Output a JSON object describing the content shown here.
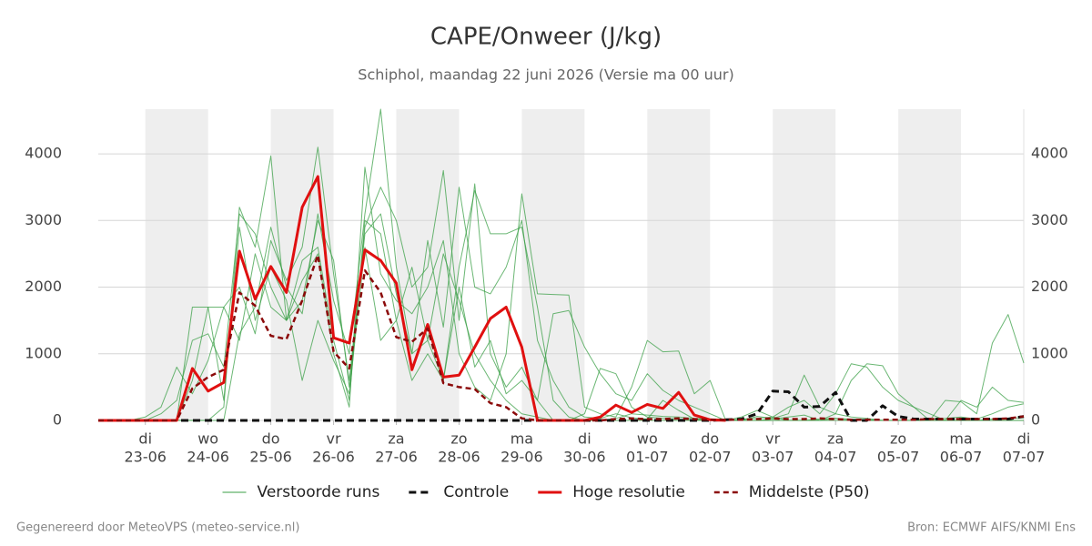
{
  "chart_data": {
    "type": "line",
    "title": "CAPE/Onweer (J/kg)",
    "subtitle": "Schiphol, maandag 22 juni 2026 (Versie ma 00 uur)",
    "footer_left": "Gegenereerd door MeteoVPS (meteo-service.nl)",
    "footer_right": "Bron: ECMWF AIFS/KNMI Ens",
    "xlim": [
      0.25,
      15
    ],
    "ylim": [
      0,
      4670
    ],
    "yticks": [
      0,
      1000,
      2000,
      3000,
      4000
    ],
    "xticks": [
      {
        "value": 1,
        "label": "23-06"
      },
      {
        "value": 2,
        "label": "24-06"
      },
      {
        "value": 3,
        "label": "25-06"
      },
      {
        "value": 4,
        "label": "26-06"
      },
      {
        "value": 5,
        "label": "27-06"
      },
      {
        "value": 6,
        "label": "28-06"
      },
      {
        "value": 7,
        "label": "29-06"
      },
      {
        "value": 8,
        "label": "30-06"
      },
      {
        "value": 9,
        "label": "01-07"
      },
      {
        "value": 10,
        "label": "02-07"
      },
      {
        "value": 11,
        "label": "03-07"
      },
      {
        "value": 12,
        "label": "04-07"
      },
      {
        "value": 13,
        "label": "05-07"
      },
      {
        "value": 14,
        "label": "06-07"
      },
      {
        "value": 15,
        "label": "07-07"
      }
    ],
    "xtick_days": [
      "di",
      "wo",
      "do",
      "vr",
      "za",
      "zo",
      "ma",
      "di",
      "wo",
      "do",
      "vr",
      "za",
      "zo",
      "ma",
      "di"
    ],
    "grid": true,
    "x": [
      0.25,
      0.5,
      0.75,
      1,
      1.25,
      1.5,
      1.75,
      2,
      2.25,
      2.5,
      2.75,
      3,
      3.25,
      3.5,
      3.75,
      4,
      4.25,
      4.5,
      4.75,
      5,
      5.25,
      5.5,
      5.75,
      6,
      6.25,
      6.5,
      6.75,
      7,
      7.25,
      7.5,
      7.75,
      8,
      8.25,
      8.5,
      8.75,
      9,
      9.25,
      9.5,
      9.75,
      10,
      10.25,
      10.5,
      10.75,
      11,
      11.25,
      11.5,
      11.75,
      12,
      12.25,
      12.5,
      12.75,
      13,
      13.25,
      13.5,
      13.75,
      14,
      14.25,
      14.5,
      14.75,
      15
    ],
    "ensemble": {
      "name": "Verstoorde runs",
      "color": "#3a9f45",
      "members": [
        [
          0,
          0,
          0,
          0,
          100,
          300,
          1200,
          1300,
          800,
          3100,
          2800,
          2000,
          1500,
          2400,
          2600,
          1200,
          300,
          3000,
          2800,
          1500,
          2300,
          1200,
          2500,
          1800,
          1000,
          600,
          300,
          100,
          50,
          0,
          0,
          0,
          0,
          30,
          100,
          80,
          60,
          50,
          30,
          20,
          10,
          0,
          0,
          20,
          50,
          80,
          0,
          30,
          20,
          10,
          0,
          0,
          0,
          20,
          30,
          50,
          20,
          100,
          200,
          250
        ],
        [
          0,
          0,
          0,
          50,
          200,
          800,
          400,
          900,
          1700,
          2000,
          1300,
          2700,
          2100,
          2600,
          4100,
          2200,
          600,
          2800,
          3100,
          1900,
          1000,
          2700,
          1400,
          3500,
          2000,
          1900,
          2300,
          3000,
          1200,
          600,
          200,
          50,
          30,
          100,
          40,
          20,
          300,
          150,
          20,
          10,
          0,
          0,
          60,
          30,
          100,
          680,
          200,
          100,
          50,
          30,
          0,
          0,
          0,
          30,
          0,
          0,
          0,
          20,
          30,
          40
        ],
        [
          0,
          0,
          0,
          0,
          0,
          0,
          600,
          1700,
          1700,
          1200,
          2500,
          1700,
          1500,
          2100,
          2500,
          1000,
          200,
          3800,
          2200,
          1800,
          1600,
          2000,
          2700,
          1000,
          500,
          300,
          1000,
          3400,
          1900,
          1890,
          1880,
          200,
          100,
          50,
          500,
          1200,
          1030,
          1040,
          400,
          600,
          0,
          0,
          0,
          0,
          0,
          0,
          0,
          100,
          600,
          850,
          820,
          400,
          200,
          0,
          300,
          280,
          100,
          1160,
          1590,
          860
        ],
        [
          0,
          0,
          0,
          0,
          0,
          0,
          0,
          0,
          200,
          3200,
          2600,
          3970,
          1500,
          1800,
          3000,
          2400,
          500,
          2900,
          3500,
          3000,
          2000,
          2300,
          3750,
          1500,
          3550,
          1000,
          500,
          800,
          300,
          0,
          0,
          100,
          780,
          700,
          200,
          50,
          30,
          20,
          10,
          0,
          0,
          20,
          30,
          50,
          0,
          0,
          20,
          30,
          0,
          0,
          0,
          0,
          0,
          0,
          0,
          0,
          0,
          0,
          0,
          0
        ],
        [
          0,
          0,
          0,
          0,
          0,
          0,
          0,
          0,
          0,
          1300,
          1700,
          2900,
          2000,
          1600,
          3100,
          1800,
          1000,
          3100,
          4670,
          2300,
          1000,
          1200,
          600,
          2300,
          3450,
          2800,
          2800,
          2900,
          1700,
          300,
          50,
          0,
          0,
          0,
          0,
          0,
          0,
          0,
          0,
          0,
          0,
          0,
          0,
          0,
          0,
          0,
          0,
          0,
          0,
          0,
          0,
          0,
          0,
          0,
          0,
          0,
          0,
          0,
          0,
          0
        ],
        [
          0,
          0,
          0,
          0,
          0,
          0,
          1700,
          1700,
          300,
          2900,
          1500,
          2300,
          1800,
          600,
          1500,
          900,
          400,
          2600,
          1200,
          1500,
          600,
          1000,
          600,
          2000,
          800,
          1200,
          400,
          600,
          300,
          1600,
          1650,
          1100,
          700,
          400,
          300,
          700,
          450,
          300,
          200,
          100,
          0,
          50,
          150,
          50,
          200,
          300,
          100,
          400,
          850,
          800,
          500,
          300,
          200,
          100,
          0,
          300,
          200,
          500,
          300,
          270
        ]
      ]
    },
    "series": [
      {
        "name": "Controle",
        "color": "#111111",
        "dash": "8 5",
        "width": 3,
        "values": [
          0,
          0,
          0,
          0,
          0,
          0,
          0,
          0,
          0,
          0,
          0,
          0,
          0,
          0,
          0,
          0,
          0,
          0,
          0,
          0,
          0,
          0,
          0,
          0,
          0,
          0,
          0,
          0,
          0,
          0,
          0,
          0,
          0,
          0,
          0,
          0,
          0,
          0,
          0,
          0,
          10,
          20,
          100,
          440,
          430,
          200,
          210,
          420,
          0,
          0,
          220,
          60,
          20,
          20,
          20,
          20,
          20,
          20,
          20,
          60
        ]
      },
      {
        "name": "Hoge resolutie",
        "color": "#e01010",
        "dash": "",
        "width": 3,
        "values": [
          0,
          0,
          0,
          0,
          0,
          0,
          780,
          440,
          570,
          2540,
          1820,
          2310,
          1920,
          3200,
          3660,
          1240,
          1160,
          2560,
          2400,
          2060,
          760,
          1440,
          650,
          680,
          1100,
          1530,
          1700,
          1100,
          0,
          0,
          0,
          0,
          50,
          230,
          120,
          240,
          180,
          420,
          80,
          10,
          0,
          null,
          null,
          null,
          null,
          null,
          null,
          null,
          null,
          null,
          null,
          null,
          null,
          null,
          null,
          null,
          null,
          null,
          null,
          null
        ]
      },
      {
        "name": "Middelste (P50)",
        "color": "#8b0a0a",
        "dash": "6 4",
        "width": 2.5,
        "values": [
          0,
          0,
          0,
          0,
          0,
          0,
          480,
          650,
          760,
          1920,
          1720,
          1270,
          1220,
          1800,
          2480,
          1030,
          780,
          2250,
          1920,
          1250,
          1180,
          1380,
          560,
          500,
          470,
          260,
          200,
          30,
          0,
          0,
          0,
          0,
          0,
          20,
          30,
          20,
          20,
          30,
          20,
          10,
          10,
          10,
          20,
          30,
          20,
          20,
          30,
          20,
          10,
          10,
          10,
          10,
          10,
          20,
          20,
          20,
          20,
          20,
          30,
          60
        ]
      }
    ]
  }
}
